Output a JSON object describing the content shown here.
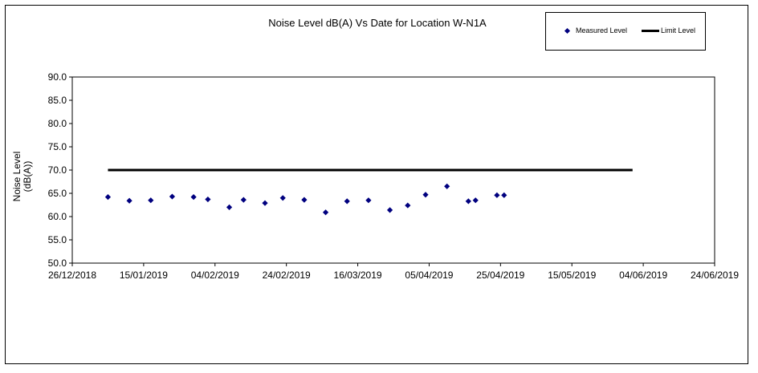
{
  "chart_data": {
    "type": "scatter",
    "title": "Noise Level dB(A) Vs Date for Location W-N1A",
    "ylabel": "Noise Level\n(dB(A))",
    "xlabel": "",
    "ylim": [
      50,
      90
    ],
    "yticks": [
      "50.0",
      "55.0",
      "60.0",
      "65.0",
      "70.0",
      "75.0",
      "80.0",
      "85.0",
      "90.0"
    ],
    "xlim": [
      "2018-12-26",
      "2019-06-24"
    ],
    "xticks": [
      "26/12/2018",
      "15/01/2019",
      "04/02/2019",
      "24/02/2019",
      "16/03/2019",
      "05/04/2019",
      "25/04/2019",
      "15/05/2019",
      "04/06/2019",
      "24/06/2019"
    ],
    "grid": false,
    "legend": "top-right",
    "series": [
      {
        "name": "Measured Level",
        "marker": "diamond",
        "color": "#00007f",
        "x": [
          "2019-01-05",
          "2019-01-11",
          "2019-01-17",
          "2019-01-23",
          "2019-01-29",
          "2019-02-02",
          "2019-02-08",
          "2019-02-12",
          "2019-02-18",
          "2019-02-23",
          "2019-03-01",
          "2019-03-07",
          "2019-03-13",
          "2019-03-19",
          "2019-03-25",
          "2019-03-30",
          "2019-04-04",
          "2019-04-10",
          "2019-04-16",
          "2019-04-18",
          "2019-04-24",
          "2019-04-26"
        ],
        "y": [
          64.2,
          63.4,
          63.5,
          64.3,
          64.2,
          63.7,
          62.0,
          63.6,
          62.9,
          64.0,
          63.6,
          60.9,
          63.3,
          63.5,
          61.4,
          62.4,
          64.7,
          66.5,
          63.3,
          63.5,
          64.6,
          64.6
        ]
      },
      {
        "name": "Limit Level",
        "color": "#000000",
        "x": [
          "2019-01-05",
          "2019-06-01"
        ],
        "y": [
          70.0,
          70.0
        ]
      }
    ]
  }
}
